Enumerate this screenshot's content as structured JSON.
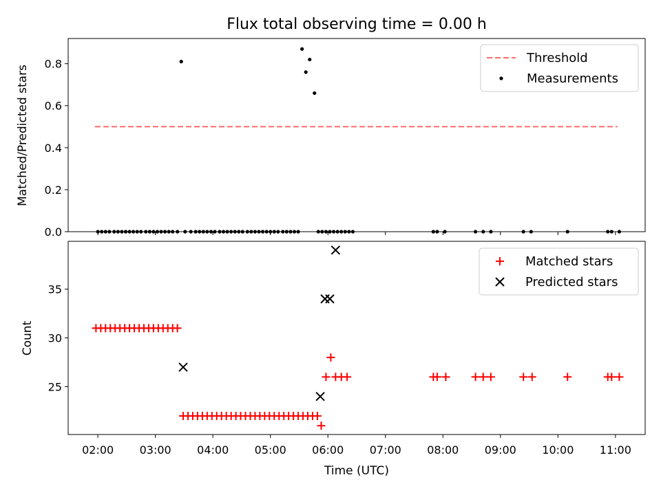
{
  "chart_data": [
    {
      "type": "scatter",
      "title": "Flux total observing time = 0.00 h",
      "xlabel": "",
      "ylabel": "Matched/Predicted stars",
      "xlim": [
        "01:29",
        "11:31"
      ],
      "ylim": [
        0,
        0.92
      ],
      "yticks": [
        "0.0",
        "0.2",
        "0.4",
        "0.6",
        "0.8"
      ],
      "grid": false,
      "legend": "top-right",
      "series": [
        {
          "name": "Threshold",
          "kind": "line",
          "style": "dashed",
          "color": "#ff6b6b",
          "x": [
            "01:57",
            "11:02"
          ],
          "y": [
            0.5,
            0.5
          ]
        },
        {
          "name": "Measurements",
          "kind": "scatter",
          "color": "#000000",
          "x": [
            "02:00",
            "02:04",
            "02:08",
            "02:12",
            "02:17",
            "02:21",
            "02:25",
            "02:29",
            "02:33",
            "02:37",
            "02:41",
            "02:45",
            "02:50",
            "02:54",
            "02:58",
            "03:02",
            "03:06",
            "03:10",
            "03:14",
            "03:18",
            "03:23",
            "03:27",
            "03:31",
            "03:37",
            "03:42",
            "03:46",
            "03:50",
            "03:54",
            "03:58",
            "04:02",
            "04:07",
            "04:11",
            "04:15",
            "04:19",
            "04:23",
            "04:27",
            "04:31",
            "04:36",
            "04:40",
            "04:44",
            "04:48",
            "04:52",
            "04:56",
            "05:00",
            "05:04",
            "05:08",
            "05:13",
            "05:17",
            "05:21",
            "05:25",
            "05:29",
            "05:33",
            "05:37",
            "05:41",
            "05:46",
            "05:50",
            "05:54",
            "05:58",
            "06:02",
            "06:06",
            "06:10",
            "06:14",
            "06:18",
            "06:22",
            "06:26",
            "07:50",
            "07:54",
            "08:02",
            "08:34",
            "08:42",
            "08:50",
            "09:24",
            "09:32",
            "10:10",
            "10:52",
            "10:56",
            "11:04"
          ],
          "y": [
            0,
            0,
            0,
            0,
            0,
            0,
            0,
            0,
            0,
            0,
            0,
            0,
            0,
            0,
            0,
            0,
            0,
            0,
            0,
            0,
            0,
            0.81,
            0,
            0,
            0,
            0,
            0,
            0,
            0,
            0,
            0,
            0,
            0,
            0,
            0,
            0,
            0,
            0,
            0,
            0,
            0,
            0,
            0,
            0,
            0,
            0,
            0,
            0,
            0,
            0,
            0,
            0.87,
            0.76,
            0.82,
            0.66,
            0,
            0,
            0,
            0,
            0,
            0,
            0,
            0,
            0,
            0,
            0,
            0,
            0,
            0,
            0,
            0,
            0,
            0,
            0,
            0,
            0,
            0
          ]
        }
      ]
    },
    {
      "type": "scatter",
      "title": "",
      "xlabel": "Time (UTC)",
      "ylabel": "Count",
      "xlim": [
        "01:29",
        "11:31"
      ],
      "ylim": [
        20.1,
        39.9
      ],
      "xticks": [
        "02:00",
        "03:00",
        "04:00",
        "05:00",
        "06:00",
        "07:00",
        "08:00",
        "09:00",
        "10:00",
        "11:00"
      ],
      "yticks": [
        "25",
        "30",
        "35"
      ],
      "grid": false,
      "legend": "top-right",
      "series": [
        {
          "name": "Matched stars",
          "marker": "+",
          "color": "#ff0000",
          "points": [
            [
              "01:58",
              31
            ],
            [
              "02:03",
              31
            ],
            [
              "02:08",
              31
            ],
            [
              "02:13",
              31
            ],
            [
              "02:18",
              31
            ],
            [
              "02:23",
              31
            ],
            [
              "02:28",
              31
            ],
            [
              "02:33",
              31
            ],
            [
              "02:38",
              31
            ],
            [
              "02:43",
              31
            ],
            [
              "02:48",
              31
            ],
            [
              "02:53",
              31
            ],
            [
              "02:58",
              31
            ],
            [
              "03:03",
              31
            ],
            [
              "03:08",
              31
            ],
            [
              "03:13",
              31
            ],
            [
              "03:18",
              31
            ],
            [
              "03:23",
              31
            ],
            [
              "03:29",
              22
            ],
            [
              "03:34",
              22
            ],
            [
              "03:39",
              22
            ],
            [
              "03:44",
              22
            ],
            [
              "03:49",
              22
            ],
            [
              "03:54",
              22
            ],
            [
              "03:59",
              22
            ],
            [
              "04:04",
              22
            ],
            [
              "04:09",
              22
            ],
            [
              "04:14",
              22
            ],
            [
              "04:19",
              22
            ],
            [
              "04:24",
              22
            ],
            [
              "04:29",
              22
            ],
            [
              "04:34",
              22
            ],
            [
              "04:39",
              22
            ],
            [
              "04:44",
              22
            ],
            [
              "04:49",
              22
            ],
            [
              "04:54",
              22
            ],
            [
              "04:59",
              22
            ],
            [
              "05:04",
              22
            ],
            [
              "05:09",
              22
            ],
            [
              "05:14",
              22
            ],
            [
              "05:19",
              22
            ],
            [
              "05:24",
              22
            ],
            [
              "05:29",
              22
            ],
            [
              "05:34",
              22
            ],
            [
              "05:39",
              22
            ],
            [
              "05:44",
              22
            ],
            [
              "05:49",
              22
            ],
            [
              "05:53",
              21
            ],
            [
              "05:58",
              26
            ],
            [
              "06:03",
              28
            ],
            [
              "06:08",
              26
            ],
            [
              "06:14",
              26
            ],
            [
              "06:20",
              26
            ],
            [
              "07:50",
              26
            ],
            [
              "07:54",
              26
            ],
            [
              "08:03",
              26
            ],
            [
              "08:34",
              26
            ],
            [
              "08:42",
              26
            ],
            [
              "08:50",
              26
            ],
            [
              "09:24",
              26
            ],
            [
              "09:33",
              26
            ],
            [
              "10:10",
              26
            ],
            [
              "10:52",
              26
            ],
            [
              "10:56",
              26
            ],
            [
              "11:04",
              26
            ]
          ]
        },
        {
          "name": "Predicted stars",
          "marker": "x",
          "color": "#000000",
          "points": [
            [
              "03:29",
              27
            ],
            [
              "05:52",
              24
            ],
            [
              "05:57",
              34
            ],
            [
              "06:02",
              34
            ],
            [
              "06:08",
              39
            ]
          ]
        }
      ]
    }
  ]
}
